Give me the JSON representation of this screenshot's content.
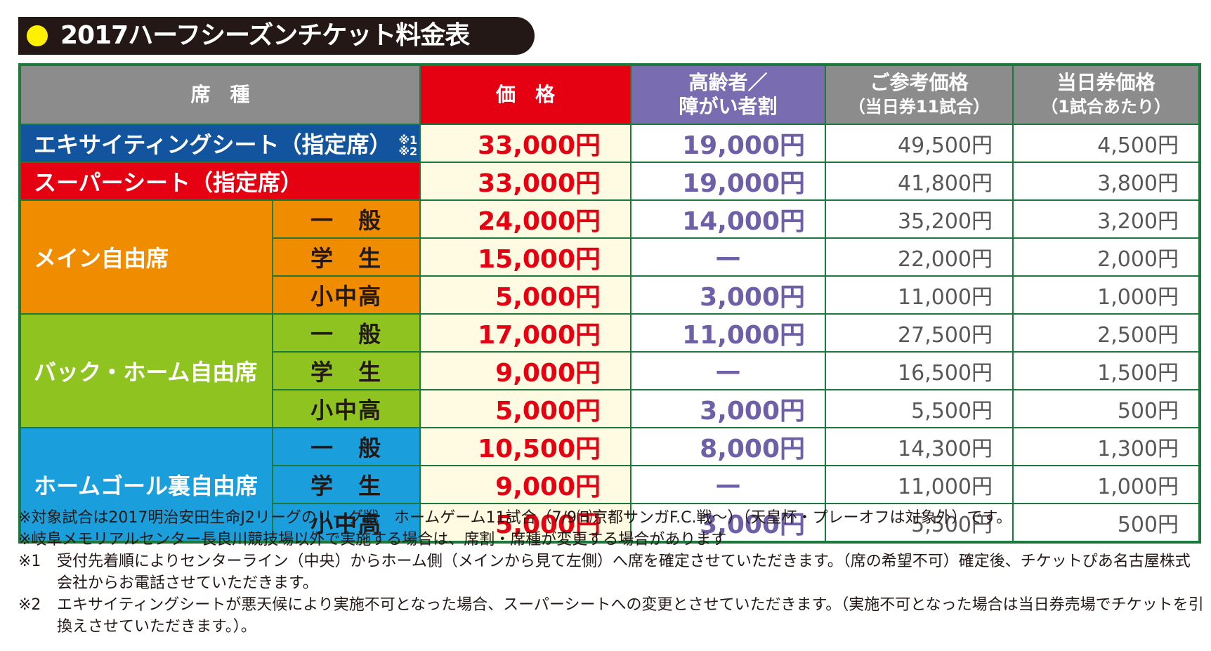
{
  "title": "2017ハーフシーズンチケット料金表",
  "table": {
    "headers": [
      {
        "main": "席　種"
      },
      {
        "main": "価　格"
      },
      {
        "main": "高齢者／",
        "sub": "障がい者割"
      },
      {
        "main": "ご参考価格",
        "sub": "（当日券11試合）"
      },
      {
        "main": "当日券価格",
        "sub": "（1試合あたり）"
      }
    ],
    "groups": [
      {
        "name": "エキサイティングシート（指定席）",
        "marks": [
          "※1",
          "※2"
        ],
        "rows": [
          {
            "price": "33,000円",
            "senior": "19,000円",
            "reference": "49,500円",
            "day": "4,500円"
          }
        ]
      },
      {
        "name": "スーパーシート（指定席）",
        "rows": [
          {
            "price": "33,000円",
            "senior": "19,000円",
            "reference": "41,800円",
            "day": "3,800円"
          }
        ]
      },
      {
        "name": "メイン自由席",
        "rows": [
          {
            "type": "一　般",
            "price": "24,000円",
            "senior": "14,000円",
            "reference": "35,200円",
            "day": "3,200円"
          },
          {
            "type": "学　生",
            "price": "15,000円",
            "senior": "—",
            "reference": "22,000円",
            "day": "2,000円"
          },
          {
            "type": "小中高",
            "price": "5,000円",
            "senior": "3,000円",
            "reference": "11,000円",
            "day": "1,000円"
          }
        ]
      },
      {
        "name": "バック・ホーム自由席",
        "rows": [
          {
            "type": "一　般",
            "price": "17,000円",
            "senior": "11,000円",
            "reference": "27,500円",
            "day": "2,500円"
          },
          {
            "type": "学　生",
            "price": "9,000円",
            "senior": "—",
            "reference": "16,500円",
            "day": "1,500円"
          },
          {
            "type": "小中高",
            "price": "5,000円",
            "senior": "3,000円",
            "reference": "5,500円",
            "day": "500円"
          }
        ]
      },
      {
        "name": "ホームゴール裏自由席",
        "rows": [
          {
            "type": "一　般",
            "price": "10,500円",
            "senior": "8,000円",
            "reference": "14,300円",
            "day": "1,300円"
          },
          {
            "type": "学　生",
            "price": "9,000円",
            "senior": "—",
            "reference": "11,000円",
            "day": "1,000円"
          },
          {
            "type": "小中高",
            "price": "5,000円",
            "senior": "3,000円",
            "reference": "5,500円",
            "day": "500円"
          }
        ]
      }
    ]
  },
  "notes": [
    {
      "text": "※対象試合は2017明治安田生命J2リーグのリーグ戦　ホームゲーム11試合（7/9㈰京都サンガF.C.戦～）（天皇杯・プレーオフは対象外）です。"
    },
    {
      "text": "※岐阜メモリアルセンター長良川競技場以外で実施する場合は、席割・席種が変更する場合があります"
    },
    {
      "label": "※1",
      "text": "受付先着順によりセンターライン（中央）からホーム側（メインから見て左側）へ席を確定させていただきます。（席の希望不可）確定後、チケットぴあ名古屋株式会社からお電話させていただきます。"
    },
    {
      "label": "※2",
      "text": "エキサイティングシートが悪天候により実施不可となった場合、スーパーシートへの変更とさせていただきます。（実施不可となった場合は当日券売場でチケットを引換えさせていただきます。）。"
    }
  ]
}
